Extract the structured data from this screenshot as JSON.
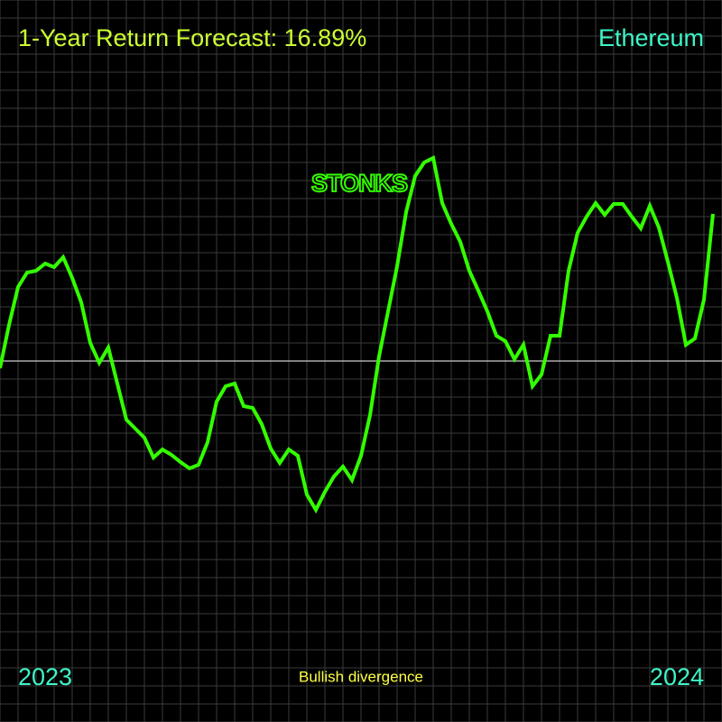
{
  "chart_data": {
    "type": "line",
    "title": "1-Year Return Forecast: 16.89%",
    "subtitle": "Ethereum",
    "annotation": "STONKS",
    "footer": "Bullish divergence",
    "x_labels": [
      "2023",
      "2024"
    ],
    "color": "#33ff00",
    "baseline": 0,
    "ylim": [
      -400,
      400
    ],
    "values": [
      -8,
      40,
      82,
      98,
      100,
      108,
      104,
      115,
      92,
      65,
      20,
      -2,
      15,
      -25,
      -65,
      -75,
      -85,
      -107,
      -98,
      -104,
      -112,
      -119,
      -115,
      -90,
      -45,
      -28,
      -25,
      -50,
      -52,
      -70,
      -97,
      -113,
      -98,
      -105,
      -148,
      -165,
      -145,
      -128,
      -117,
      -132,
      -105,
      -60,
      5,
      55,
      105,
      165,
      205,
      220,
      225,
      175,
      152,
      132,
      100,
      78,
      55,
      28,
      22,
      2,
      18,
      -28,
      -15,
      28,
      28,
      100,
      142,
      160,
      175,
      162,
      174,
      174,
      160,
      147,
      172,
      148,
      110,
      70,
      18,
      25,
      68,
      163
    ]
  }
}
